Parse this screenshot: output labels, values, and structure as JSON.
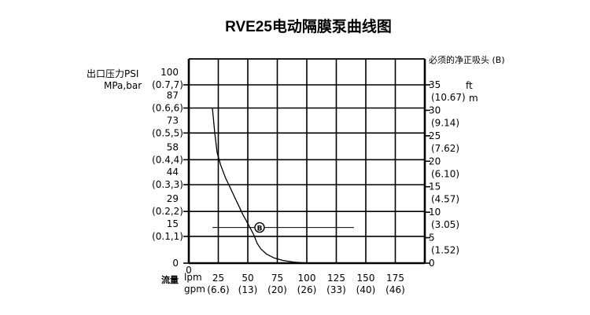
{
  "chart_data": {
    "type": "line",
    "title": "RVE25电动隔膜泵曲线图",
    "left_axis": {
      "label_line1": "出口压力PSI",
      "label_line2": "MPa,bar",
      "ticks": [
        {
          "psi": "100",
          "mpa_bar": "(0.7,7)",
          "value": 100
        },
        {
          "psi": "87",
          "mpa_bar": "(0.6,6)",
          "value": 87
        },
        {
          "psi": "73",
          "mpa_bar": "(0.5,5)",
          "value": 73
        },
        {
          "psi": "58",
          "mpa_bar": "(0.4,4)",
          "value": 58
        },
        {
          "psi": "44",
          "mpa_bar": "(0.3,3)",
          "value": 44
        },
        {
          "psi": "29",
          "mpa_bar": "(0.2,2)",
          "value": 29
        },
        {
          "psi": "15",
          "mpa_bar": "(0.1,1)",
          "value": 15
        },
        {
          "psi": "0",
          "mpa_bar": "",
          "value": 0
        }
      ]
    },
    "right_axis": {
      "label": "必须的净正吸头 (B)",
      "unit_ft": "ft",
      "unit_m": "m",
      "ticks": [
        {
          "ft": "35",
          "m": "(10.67)",
          "value": 35
        },
        {
          "ft": "30",
          "m": "(9.14)",
          "value": 30
        },
        {
          "ft": "25",
          "m": "(7.62)",
          "value": 25
        },
        {
          "ft": "20",
          "m": "(6.10)",
          "value": 20
        },
        {
          "ft": "15",
          "m": "(4.57)",
          "value": 15
        },
        {
          "ft": "10",
          "m": "(3.05)",
          "value": 10
        },
        {
          "ft": "5",
          "m": "(1.52)",
          "value": 5
        },
        {
          "ft": "0",
          "m": "",
          "value": 0
        }
      ]
    },
    "x_axis": {
      "label": "流量",
      "unit_lpm": "lpm",
      "unit_gpm": "gpm",
      "zero_label": "0",
      "ticks": [
        {
          "lpm": "25",
          "gpm": "(6.6)",
          "value": 25
        },
        {
          "lpm": "50",
          "gpm": "(13)",
          "value": 50
        },
        {
          "lpm": "75",
          "gpm": "(20)",
          "value": 75
        },
        {
          "lpm": "100",
          "gpm": "(26)",
          "value": 100
        },
        {
          "lpm": "125",
          "gpm": "(33)",
          "value": 125
        },
        {
          "lpm": "150",
          "gpm": "(40)",
          "value": 150
        },
        {
          "lpm": "175",
          "gpm": "(46)",
          "value": 175
        }
      ],
      "xlim": [
        0,
        200
      ]
    },
    "ylim": [
      0,
      100
    ],
    "grid": true,
    "series": [
      {
        "name": "",
        "x": [
          20,
          22,
          24,
          27,
          31,
          36,
          41,
          46,
          51,
          55,
          58,
          61,
          66,
          72,
          80,
          89,
          97,
          102
        ],
        "y": [
          87,
          73,
          62,
          55,
          48,
          41,
          34,
          27,
          21,
          16,
          11,
          8,
          5,
          3,
          1.5,
          0.6,
          0.2,
          0
        ]
      }
    ],
    "npsh_line": {
      "marker_label": "B",
      "x_start": 20,
      "x_end": 140,
      "marker_x": 60,
      "value_ft": 7
    }
  }
}
